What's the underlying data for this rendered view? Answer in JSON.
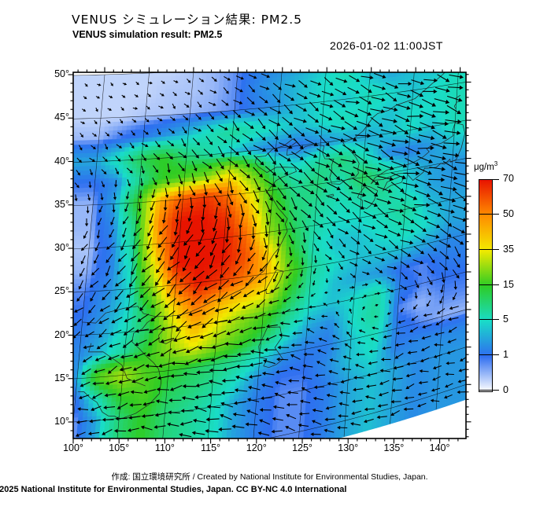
{
  "header": {
    "title_jp": "VENUS シミュレーション結果: PM2.5",
    "title_en": "VENUS simulation result: PM2.5",
    "datetime": "2026-01-02 11:00JST"
  },
  "footer": {
    "credit": "作成: 国立環境研究所 / Created by National Institute for Environmental Studies, Japan.",
    "copyright": "©2025 National Institute for Environmental Studies, Japan. CC BY-NC 4.0 International"
  },
  "colorbar": {
    "unit_base": "μg/m",
    "unit_exp": "3",
    "ticks": [
      0,
      1,
      5,
      15,
      35,
      50,
      70
    ],
    "colors": [
      "#ffffff",
      "#2e6ef0",
      "#19dcc8",
      "#2ecc24",
      "#f2ea00",
      "#ff8c00",
      "#e81400"
    ]
  },
  "axes": {
    "lat_labels": [
      "50°",
      "45°",
      "40°",
      "35°",
      "30°",
      "25°",
      "20°",
      "15°",
      "10°"
    ],
    "lon_labels": [
      "100°",
      "105°",
      "110°",
      "115°",
      "120°",
      "125°",
      "130°",
      "135°",
      "140°"
    ],
    "lat_values": [
      50,
      45,
      40,
      35,
      30,
      25,
      20,
      15,
      10
    ],
    "lon_values": [
      100,
      105,
      110,
      115,
      120,
      125,
      130,
      135,
      140
    ]
  },
  "chart_data": {
    "type": "heatmap",
    "title": "VENUS simulation result: PM2.5",
    "datetime": "2026-01-02 11:00JST",
    "unit": "μg/m3",
    "value_scale_ticks": [
      0,
      1,
      5,
      15,
      35,
      50,
      70
    ],
    "lon_range": [
      100,
      140
    ],
    "lat_range": [
      10,
      50
    ],
    "grid_lons": [
      100,
      102.5,
      105,
      107.5,
      110,
      112.5,
      115,
      117.5,
      120,
      122.5,
      125,
      127.5,
      130,
      132.5,
      135,
      137.5,
      140
    ],
    "grid_lats": [
      50,
      47.5,
      45,
      42.5,
      40,
      37.5,
      35,
      32.5,
      30,
      27.5,
      25,
      22.5,
      20,
      17.5,
      15,
      12.5,
      10
    ],
    "pm25": [
      [
        0.3,
        0.3,
        0.3,
        0.3,
        0.4,
        0.5,
        0.8,
        1.5,
        2,
        3,
        4,
        6,
        3,
        2.5,
        4,
        3,
        5
      ],
      [
        0.3,
        0.3,
        0.3,
        0.4,
        0.4,
        0.5,
        0.8,
        2,
        3,
        4,
        5,
        6,
        4,
        3,
        4,
        4,
        5
      ],
      [
        0.3,
        0.3,
        0.4,
        0.4,
        0.5,
        0.6,
        0.8,
        1.5,
        2.5,
        4,
        5,
        4,
        6,
        5,
        4,
        5,
        6
      ],
      [
        0.5,
        1,
        1.5,
        2.5,
        4,
        6,
        8,
        6,
        5,
        4,
        5,
        6,
        5,
        4,
        5,
        5,
        6
      ],
      [
        3,
        6,
        12,
        15,
        10,
        7,
        4,
        2.5,
        1.5,
        1.2,
        2,
        3,
        3,
        4,
        5,
        4,
        6
      ],
      [
        1,
        2,
        8,
        15,
        18,
        22,
        35,
        20,
        8,
        5,
        8,
        10,
        6,
        2,
        1.5,
        2.5,
        4
      ],
      [
        0.5,
        3,
        15,
        45,
        60,
        65,
        55,
        35,
        15,
        8,
        10,
        6,
        12,
        8,
        4,
        3,
        2.5
      ],
      [
        0.5,
        2,
        10,
        50,
        70,
        70,
        65,
        45,
        20,
        10,
        8,
        6,
        7,
        8,
        5,
        3,
        2.5
      ],
      [
        0.4,
        1.5,
        8,
        45,
        70,
        70,
        70,
        55,
        25,
        12,
        7,
        5,
        5,
        6,
        8,
        4,
        3
      ],
      [
        0.5,
        1.5,
        6,
        35,
        70,
        70,
        70,
        60,
        40,
        15,
        6,
        4,
        4,
        5,
        6,
        5,
        3
      ],
      [
        0.8,
        2,
        5,
        25,
        55,
        70,
        65,
        55,
        45,
        20,
        8,
        5,
        4,
        4,
        4,
        3,
        2
      ],
      [
        1,
        2.5,
        5,
        15,
        40,
        55,
        45,
        40,
        35,
        15,
        7,
        4,
        3,
        2.5,
        1,
        0.8,
        1.5
      ],
      [
        1.5,
        3,
        6,
        12,
        30,
        45,
        35,
        25,
        18,
        10,
        5,
        4,
        5,
        7,
        1.5,
        0.8,
        1
      ],
      [
        2,
        4,
        8,
        15,
        25,
        35,
        25,
        18,
        12,
        6,
        3,
        2,
        5,
        8,
        0.8,
        0.5,
        0.8
      ],
      [
        2.5,
        20,
        28,
        18,
        15,
        12,
        10,
        8,
        5,
        2.5,
        1.5,
        1.5,
        4,
        6,
        1.5,
        0.8,
        0.5
      ],
      [
        0.8,
        6,
        15,
        18,
        12,
        10,
        8,
        5,
        2,
        1,
        1,
        2,
        4,
        5,
        1.5,
        2,
        2
      ],
      [
        0.5,
        3,
        10,
        15,
        10,
        8,
        6,
        3,
        1.5,
        0.8,
        0.8,
        1.5,
        3,
        4,
        3,
        2,
        2.5
      ]
    ],
    "wind": {
      "grid_lons": [
        100,
        105,
        110,
        115,
        120,
        125,
        130,
        135,
        140
      ],
      "grid_lats": [
        50,
        45,
        40,
        35,
        30,
        25,
        20,
        15,
        10
      ],
      "u": [
        [
          1,
          1,
          1.5,
          3,
          4,
          5,
          5,
          6,
          6
        ],
        [
          1,
          1.5,
          2,
          4,
          5,
          6,
          7,
          7,
          8
        ],
        [
          2,
          2.5,
          3.5,
          5,
          6,
          7,
          8,
          9,
          9
        ],
        [
          0,
          -1,
          0,
          3,
          5,
          7,
          8,
          9,
          10
        ],
        [
          -2,
          -4,
          -4,
          -2,
          1,
          4,
          6,
          8,
          8
        ],
        [
          -3,
          -5,
          -6,
          -6,
          -4,
          0,
          4,
          6,
          6
        ],
        [
          -4,
          -6,
          -7,
          -7,
          -6,
          -3,
          1,
          3,
          2
        ],
        [
          -5,
          -6,
          -7,
          -8,
          -7,
          -5,
          -3,
          -4,
          -5
        ],
        [
          -5,
          -6,
          -6,
          -7,
          -6,
          -5,
          -5,
          -5,
          -4
        ]
      ],
      "v": [
        [
          -0.5,
          -0.5,
          -1,
          -1.5,
          -2,
          -2,
          -2,
          -1,
          -1
        ],
        [
          -1,
          -1,
          -2,
          -3,
          -4,
          -3,
          -3,
          -2,
          -2
        ],
        [
          -2,
          -3,
          -4,
          -5,
          -5,
          -4,
          -3,
          -3,
          -2
        ],
        [
          -3,
          -4,
          -6,
          -6,
          -6,
          -5,
          -4,
          -3,
          -2
        ],
        [
          -4,
          -5,
          -7,
          -7,
          -6,
          -5,
          -4,
          -3,
          -3
        ],
        [
          -4,
          -5,
          -6,
          -5,
          -4,
          -3,
          -3,
          -3,
          -4
        ],
        [
          -3,
          -3,
          -4,
          -3,
          -2,
          0,
          2,
          -2,
          -5
        ],
        [
          -2,
          -2,
          -1,
          -1,
          0,
          1,
          2,
          -1,
          -2
        ],
        [
          -1,
          -1,
          0,
          1,
          1,
          1,
          0,
          -1,
          -1
        ]
      ]
    }
  }
}
